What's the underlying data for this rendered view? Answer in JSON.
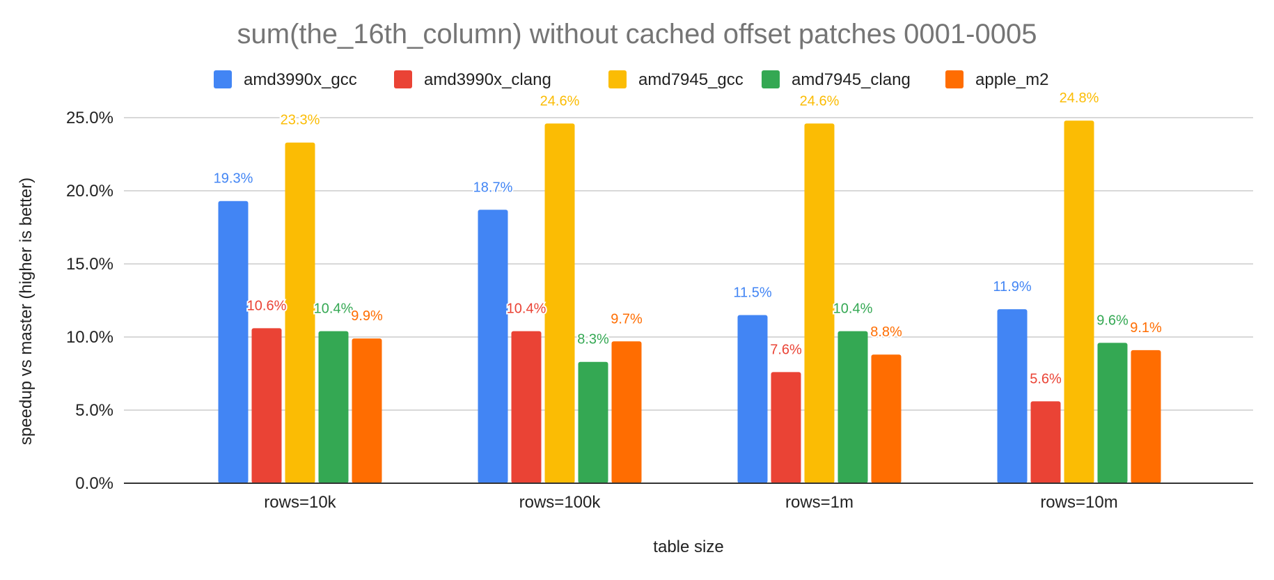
{
  "chart_data": {
    "type": "bar",
    "title": "sum(the_16th_column) without cached offset patches 0001-0005",
    "xlabel": "table size",
    "ylabel": "speedup vs master (higher is better)",
    "categories": [
      "rows=10k",
      "rows=100k",
      "rows=1m",
      "rows=10m"
    ],
    "ylim": [
      0,
      25
    ],
    "yticks": [
      0,
      5,
      10,
      15,
      20,
      25
    ],
    "ytick_labels": [
      "0.0%",
      "5.0%",
      "10.0%",
      "15.0%",
      "20.0%",
      "25.0%"
    ],
    "grid": true,
    "legend_position": "top-center",
    "series": [
      {
        "name": "amd3990x_gcc",
        "color": "#4285F4",
        "values": [
          19.3,
          18.7,
          11.5,
          11.9
        ],
        "labels": [
          "19.3%",
          "18.7%",
          "11.5%",
          "11.9%"
        ]
      },
      {
        "name": "amd3990x_clang",
        "color": "#EA4335",
        "values": [
          10.6,
          10.4,
          7.6,
          5.6
        ],
        "labels": [
          "10.6%",
          "10.4%",
          "7.6%",
          "5.6%"
        ]
      },
      {
        "name": "amd7945_gcc",
        "color": "#FBBC04",
        "values": [
          23.3,
          24.6,
          24.6,
          24.8
        ],
        "labels": [
          "23.3%",
          "24.6%",
          "24.6%",
          "24.8%"
        ]
      },
      {
        "name": "amd7945_clang",
        "color": "#34A853",
        "values": [
          10.4,
          8.3,
          10.4,
          9.6
        ],
        "labels": [
          "10.4%",
          "8.3%",
          "10.4%",
          "9.6%"
        ]
      },
      {
        "name": "apple_m2",
        "color": "#FF6D01",
        "values": [
          9.9,
          9.7,
          8.8,
          9.1
        ],
        "labels": [
          "9.9%",
          "9.7%",
          "8.8%",
          "9.1%"
        ]
      }
    ]
  }
}
